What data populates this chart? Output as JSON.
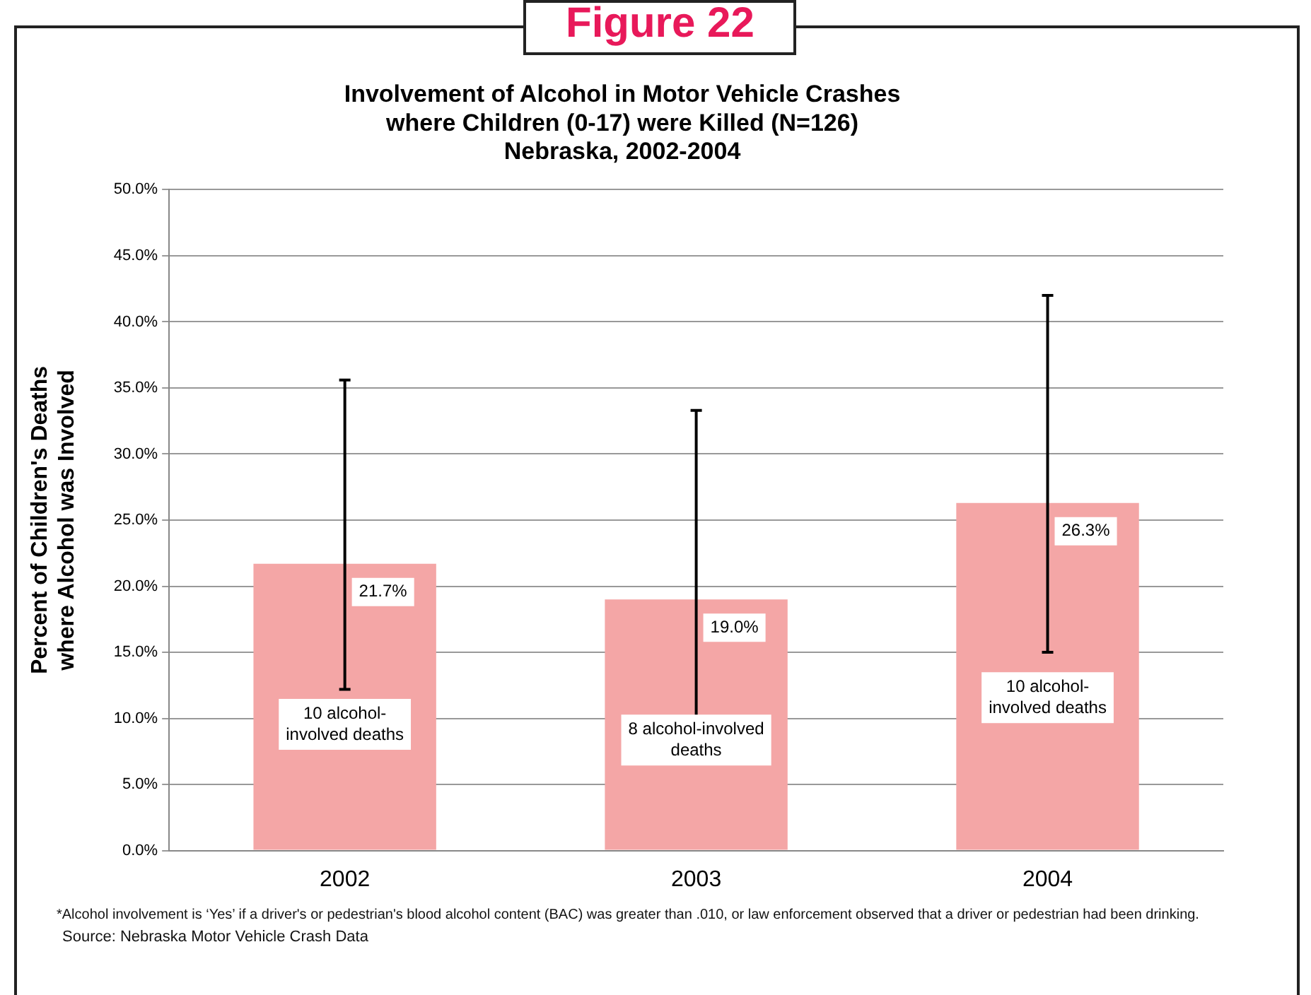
{
  "chart_data": {
    "type": "bar",
    "title": "Involvement of Alcohol in Motor Vehicle Crashes\nwhere Children (0-17) were Killed (N=126)\nNebraska, 2002-2004",
    "ylabel": "Percent of Children's Deaths\nwhere Alcohol was Involved",
    "categories": [
      "2002",
      "2003",
      "2004"
    ],
    "values": [
      21.7,
      19.0,
      26.3
    ],
    "value_labels": [
      "21.7%",
      "19.0%",
      "26.3%"
    ],
    "errors": [
      [
        12.2,
        35.6
      ],
      [
        10.0,
        33.3
      ],
      [
        15.0,
        42.0
      ]
    ],
    "color": "#f4a6a6",
    "ylim": [
      0,
      50
    ],
    "yticks": [
      {
        "value": 0,
        "label": "0.0%"
      },
      {
        "value": 5,
        "label": "5.0%"
      },
      {
        "value": 10,
        "label": "10.0%"
      },
      {
        "value": 15,
        "label": "15.0%"
      },
      {
        "value": 20,
        "label": "20.0%"
      },
      {
        "value": 25,
        "label": "25.0%"
      },
      {
        "value": 30,
        "label": "30.0%"
      },
      {
        "value": 35,
        "label": "35.0%"
      },
      {
        "value": 40,
        "label": "40.0%"
      },
      {
        "value": 45,
        "label": "45.0%"
      },
      {
        "value": 50,
        "label": "50.0%"
      }
    ],
    "grid": "y",
    "annotations": [
      "Figure 22",
      "10 alcohol-\ninvolved deaths",
      "8 alcohol-involved\ndeaths",
      "10 alcohol-\ninvolved deaths",
      "*Alcohol involvement is ‘Yes’ if a driver's or pedestrian's blood alcohol content (BAC) was greater than .010, or law enforcement observed that a driver or pedestrian had been drinking.",
      "Source: Nebraska Motor Vehicle Crash Data"
    ]
  }
}
